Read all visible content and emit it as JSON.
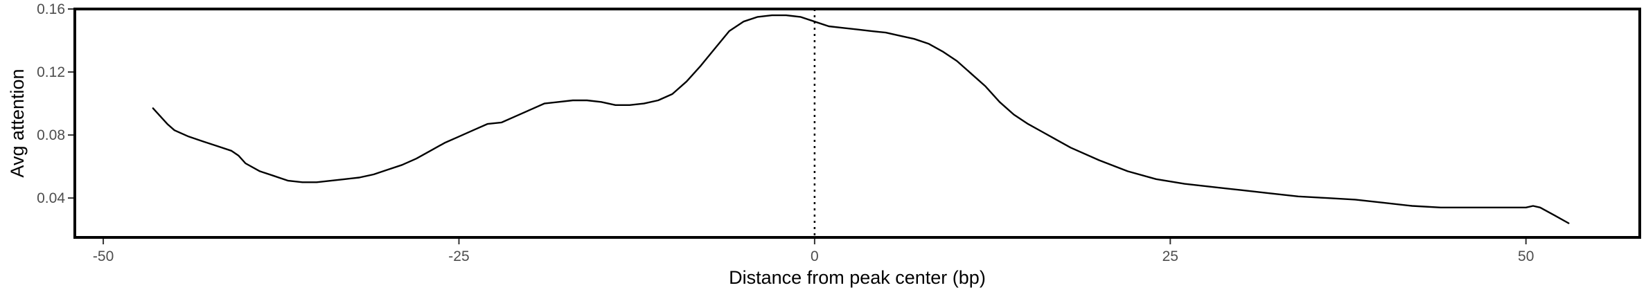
{
  "chart_data": {
    "type": "line",
    "title": "",
    "xlabel": "Distance from peak center (bp)",
    "ylabel": "Avg attention",
    "xlim": [
      -52,
      58
    ],
    "ylim": [
      0.015,
      0.16
    ],
    "x_ticks": [
      -50,
      -25,
      0,
      25,
      50
    ],
    "y_ticks": [
      0.04,
      0.08,
      0.12,
      0.16
    ],
    "x_tick_labels": [
      "-50",
      "-25",
      "0",
      "25",
      "50"
    ],
    "y_tick_labels": [
      "0.04",
      "0.08",
      "0.12",
      "0.16"
    ],
    "grid": false,
    "reference_line": {
      "x": 0,
      "style": "dotted"
    },
    "series": [
      {
        "color": "#000000",
        "x": [
          -46.5,
          -45.5,
          -45,
          -44,
          -43,
          -42,
          -41,
          -40.5,
          -40,
          -39,
          -38,
          -37,
          -36,
          -35,
          -34,
          -33,
          -32,
          -31,
          -30,
          -29,
          -28,
          -27,
          -26,
          -25,
          -24,
          -23,
          -22,
          -21,
          -20,
          -19,
          -18,
          -17,
          -16,
          -15,
          -14,
          -13,
          -12,
          -11,
          -10,
          -9,
          -8,
          -7,
          -6,
          -5,
          -4,
          -3,
          -2,
          -1,
          0,
          1,
          2,
          3,
          4,
          5,
          6,
          7,
          8,
          9,
          10,
          11,
          12,
          13,
          14,
          15,
          16,
          17,
          18,
          20,
          22,
          24,
          26,
          28,
          30,
          32,
          34,
          36,
          38,
          40,
          42,
          44,
          46,
          48,
          50,
          50.5,
          51,
          52,
          53
        ],
        "y": [
          0.097,
          0.087,
          0.083,
          0.079,
          0.076,
          0.073,
          0.07,
          0.067,
          0.062,
          0.057,
          0.054,
          0.051,
          0.05,
          0.05,
          0.051,
          0.052,
          0.053,
          0.055,
          0.058,
          0.061,
          0.065,
          0.07,
          0.075,
          0.079,
          0.083,
          0.087,
          0.088,
          0.092,
          0.096,
          0.1,
          0.101,
          0.102,
          0.102,
          0.101,
          0.099,
          0.099,
          0.1,
          0.102,
          0.106,
          0.114,
          0.124,
          0.135,
          0.146,
          0.152,
          0.155,
          0.156,
          0.156,
          0.155,
          0.152,
          0.149,
          0.148,
          0.147,
          0.146,
          0.145,
          0.143,
          0.141,
          0.138,
          0.133,
          0.127,
          0.119,
          0.111,
          0.101,
          0.093,
          0.087,
          0.082,
          0.077,
          0.072,
          0.064,
          0.057,
          0.052,
          0.049,
          0.047,
          0.045,
          0.043,
          0.041,
          0.04,
          0.039,
          0.037,
          0.035,
          0.034,
          0.034,
          0.034,
          0.034,
          0.035,
          0.034,
          0.029,
          0.024
        ]
      }
    ]
  }
}
